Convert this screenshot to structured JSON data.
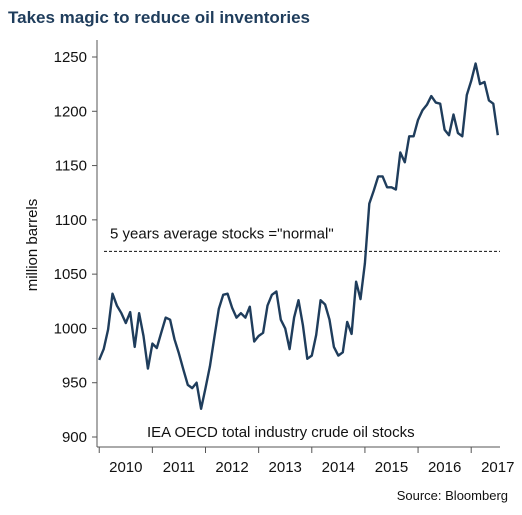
{
  "header": {
    "title": "Takes magic to reduce oil inventories"
  },
  "footer": {
    "source": "Source: Bloomberg"
  },
  "colors": {
    "series": "#1f3d5c",
    "axis": "#555555",
    "title": "#1f3d5c"
  },
  "chart_data": {
    "type": "line",
    "title": "Takes magic to reduce oil inventories",
    "xlabel": "",
    "ylabel": "million barrels",
    "ylim": [
      900,
      1250
    ],
    "yticks": [
      900,
      950,
      1000,
      1050,
      1100,
      1150,
      1200,
      1250
    ],
    "xlim": [
      2009.958,
      2017.542
    ],
    "xticks": [
      "2010",
      "2011",
      "2012",
      "2013",
      "2014",
      "2015",
      "2016",
      "2017"
    ],
    "grid": false,
    "legend": "none",
    "reference_line": {
      "value": 1071,
      "label": "5 years average stocks =\"normal\""
    },
    "series_label": "IEA OECD total industry crude oil stocks",
    "series": [
      {
        "name": "",
        "x_start": 2010.0,
        "x_step": 0.08333,
        "values": [
          971,
          981,
          999,
          1032,
          1021,
          1014,
          1005,
          1015,
          983,
          1014,
          993,
          963,
          986,
          982,
          996,
          1010,
          1008,
          990,
          977,
          962,
          948,
          945,
          950,
          926,
          945,
          965,
          992,
          1018,
          1031,
          1032,
          1019,
          1010,
          1014,
          1010,
          1020,
          988,
          993,
          996,
          1021,
          1031,
          1034,
          1008,
          1000,
          981,
          1010,
          1026,
          1003,
          972,
          975,
          994,
          1026,
          1022,
          1008,
          983,
          975,
          978,
          1006,
          995,
          1043,
          1027,
          1060,
          1115,
          1127,
          1140,
          1140,
          1130,
          1130,
          1128,
          1162,
          1153,
          1177,
          1177,
          1192,
          1201,
          1206,
          1214,
          1208,
          1207,
          1183,
          1178,
          1197,
          1180,
          1177,
          1215,
          1228,
          1244,
          1225,
          1227,
          1210,
          1207,
          1178
        ]
      }
    ]
  }
}
